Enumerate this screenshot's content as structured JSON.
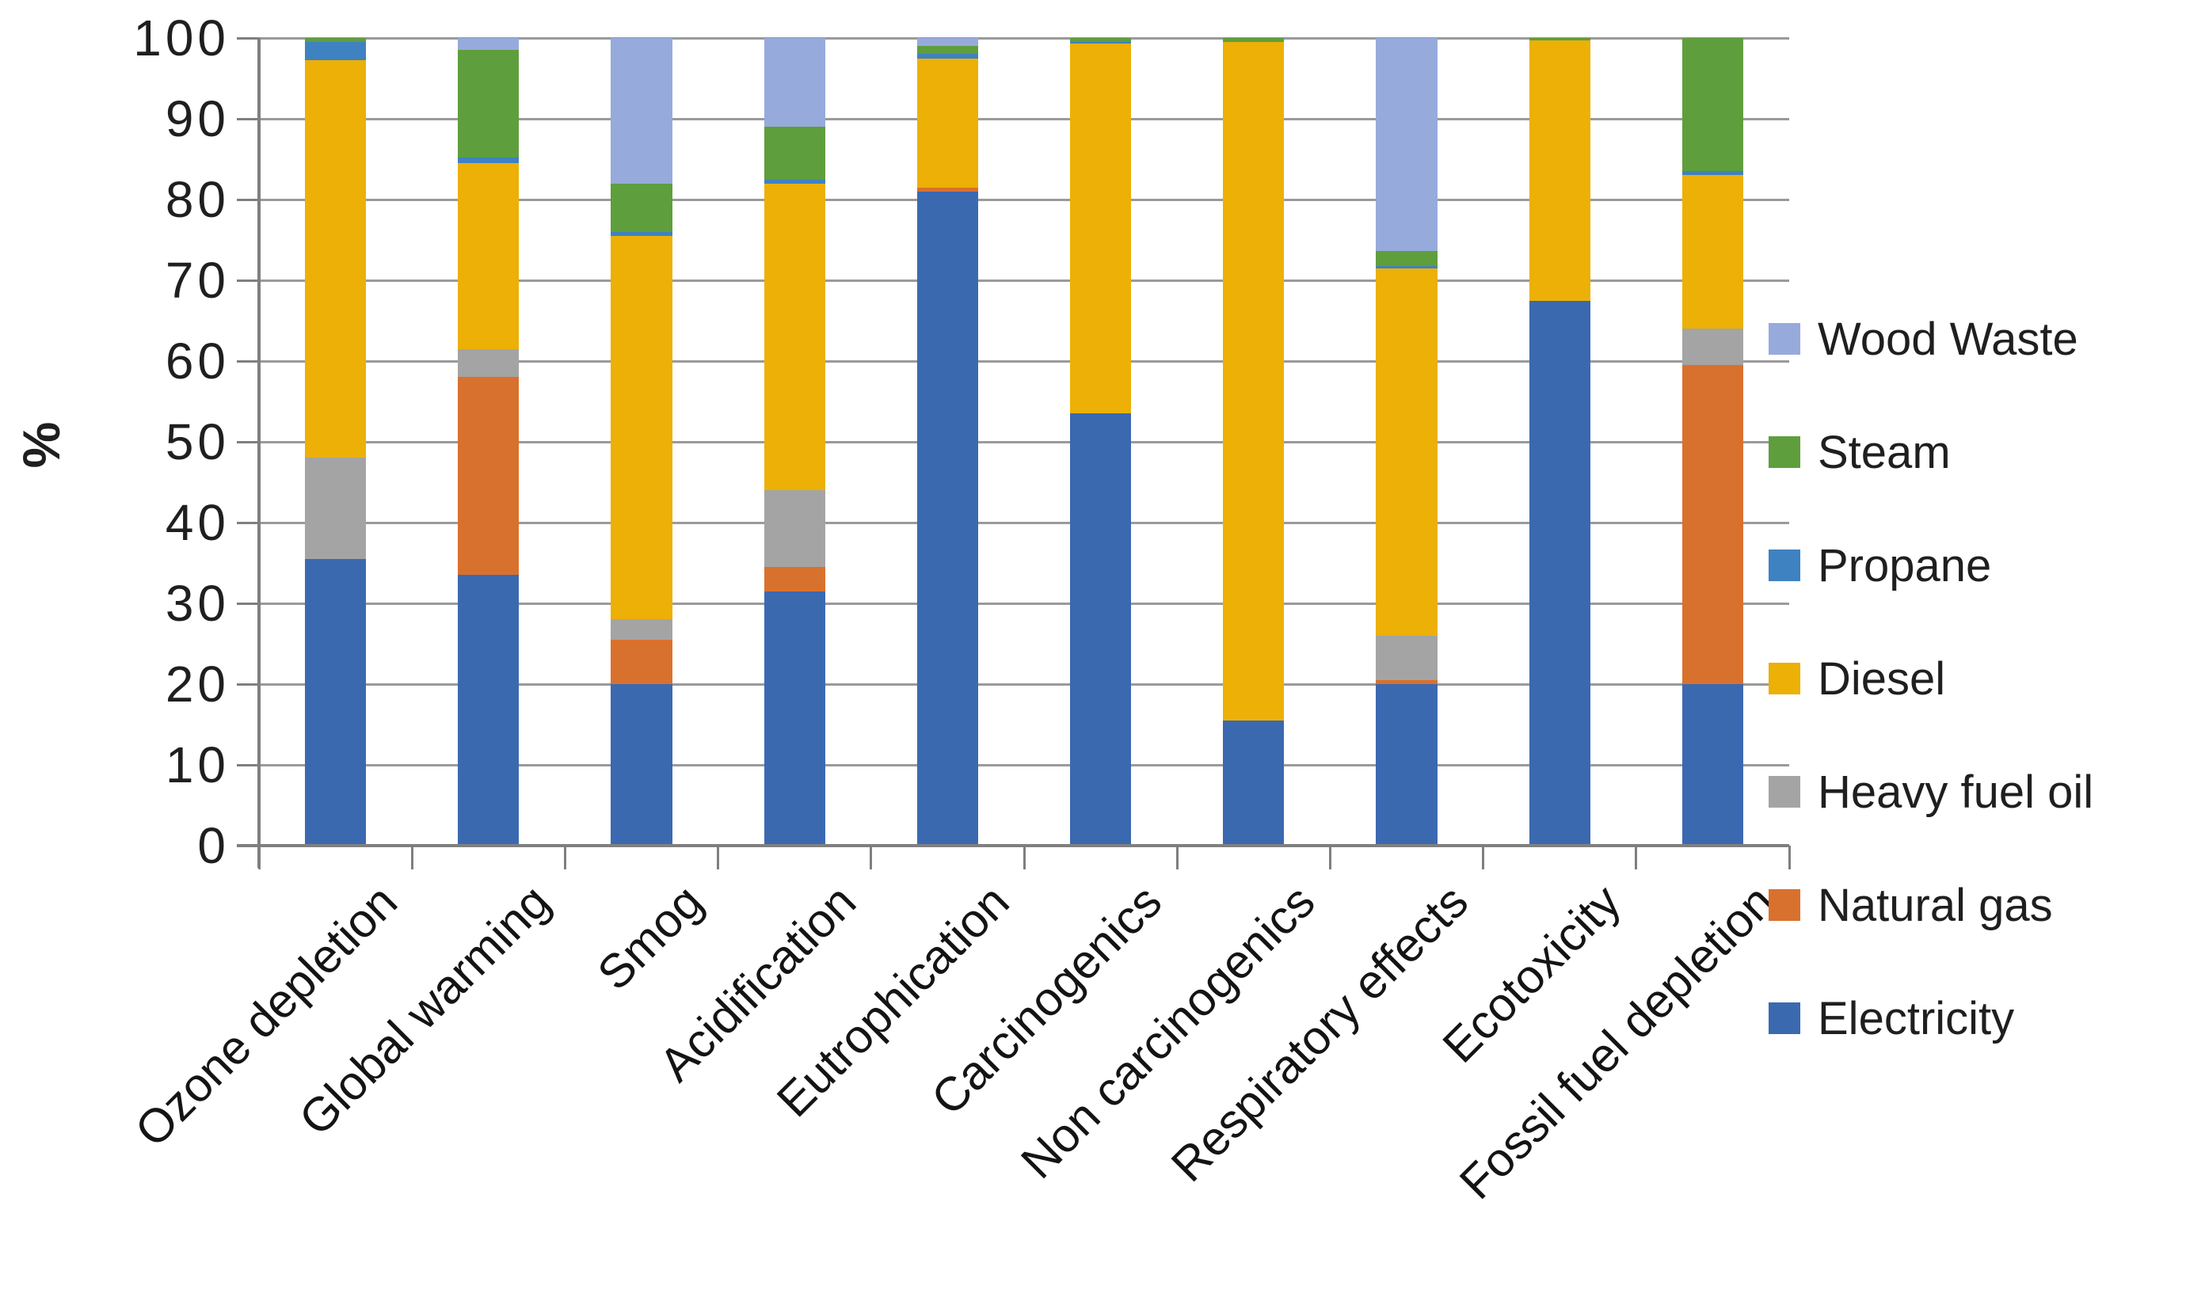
{
  "chart_data": {
    "type": "bar",
    "stacked": true,
    "units": "percent",
    "title": "",
    "xlabel": "",
    "ylabel": "%",
    "ylim": [
      0,
      100
    ],
    "ytick_step": 10,
    "ytick_labels": [
      "0",
      "10",
      "20",
      "30",
      "40",
      "50",
      "60",
      "70",
      "80",
      "90",
      "100"
    ],
    "grid": "horizontal",
    "legend_position": "right",
    "categories": [
      "Ozone depletion",
      "Global warming",
      "Smog",
      "Acidification",
      "Eutrophication",
      "Carcinogenics",
      "Non carcinogenics",
      "Respiratory effects",
      "Ecotoxicity",
      "Fossil fuel depletion"
    ],
    "series": [
      {
        "name": "Electricity",
        "color": "#3B69B0",
        "values": [
          35.5,
          33.5,
          20.0,
          31.5,
          81.0,
          53.5,
          15.5,
          20.0,
          67.5,
          20.0
        ]
      },
      {
        "name": "Natural gas",
        "color": "#D9712E",
        "values": [
          0,
          24.5,
          5.5,
          3.0,
          0.5,
          0,
          0,
          0.5,
          0,
          39.5
        ]
      },
      {
        "name": "Heavy fuel oil",
        "color": "#A4A4A4",
        "values": [
          12.5,
          3.5,
          2.5,
          9.5,
          0,
          0,
          0,
          5.5,
          0,
          4.5
        ]
      },
      {
        "name": "Diesel",
        "color": "#ECB006",
        "values": [
          49.3,
          23.0,
          47.5,
          38.0,
          16.0,
          45.8,
          84.0,
          45.5,
          32.2,
          19.0
        ]
      },
      {
        "name": "Propane",
        "color": "#3E82C2",
        "values": [
          2.2,
          0.7,
          0.5,
          0.5,
          0.5,
          0.2,
          0,
          0.3,
          0,
          0.5
        ]
      },
      {
        "name": "Steam",
        "color": "#5F9E3D",
        "values": [
          0.5,
          13.3,
          6.0,
          6.5,
          1.0,
          0.5,
          0.5,
          1.8,
          0.3,
          16.5
        ]
      },
      {
        "name": "Wood Waste",
        "color": "#97AADC",
        "values": [
          0,
          1.5,
          18.0,
          11.0,
          1.0,
          0,
          0,
          26.4,
          0,
          0
        ]
      }
    ],
    "legend_top_to_bottom": [
      "Wood Waste",
      "Steam",
      "Propane",
      "Diesel",
      "Heavy fuel oil",
      "Natural gas",
      "Electricity"
    ]
  }
}
